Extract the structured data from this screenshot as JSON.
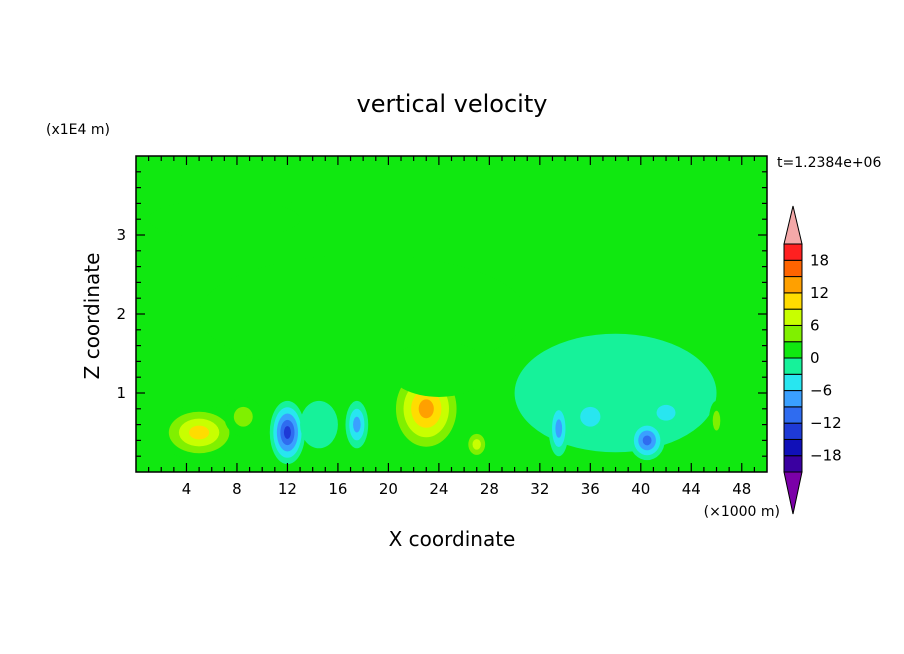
{
  "chart_data": {
    "type": "heatmap",
    "title": "vertical velocity",
    "xlabel": "X coordinate",
    "ylabel": "Z coordinate",
    "x_unit": "(×1000 m)",
    "y_unit": "(x1E4 m)",
    "time_label": "t=1.2384e+06",
    "xlim": [
      0,
      50
    ],
    "ylim": [
      0,
      4
    ],
    "x_ticks": [
      4,
      8,
      12,
      16,
      20,
      24,
      28,
      32,
      36,
      40,
      44,
      48
    ],
    "y_ticks": [
      1,
      2,
      3
    ],
    "background_level": 0,
    "colorbar": {
      "levels": [
        -21,
        -18,
        -15,
        -12,
        -9,
        -6,
        -3,
        0,
        3,
        6,
        9,
        12,
        15,
        18,
        21
      ],
      "tick_labels": [
        -18,
        -12,
        -6,
        0,
        6,
        12,
        18
      ],
      "colors": [
        "#7b00a8",
        "#3a00a0",
        "#1010b8",
        "#1e3ad6",
        "#2f6cf0",
        "#3aa0ff",
        "#28e6f0",
        "#16f29a",
        "#10e810",
        "#80f000",
        "#c8ff00",
        "#ffdc00",
        "#ffa000",
        "#ff6400",
        "#ff2020",
        "#f4a8a8"
      ],
      "extend": "both"
    },
    "features": [
      {
        "x": 5,
        "z": 0.5,
        "value": 11,
        "rx": 3.2,
        "rz": 0.35
      },
      {
        "x": 8.5,
        "z": 0.7,
        "value": 5,
        "rx": 1.5,
        "rz": 0.25
      },
      {
        "x": 12,
        "z": 0.5,
        "value": -14,
        "rx": 1.4,
        "rz": 0.4
      },
      {
        "x": 14.5,
        "z": 0.6,
        "value": -3,
        "rx": 1.5,
        "rz": 0.3
      },
      {
        "x": 17.5,
        "z": 0.6,
        "value": -10,
        "rx": 0.9,
        "rz": 0.3
      },
      {
        "x": 23,
        "z": 0.8,
        "value": 14,
        "rx": 3.0,
        "rz": 0.6
      },
      {
        "x": 27,
        "z": 0.35,
        "value": 9,
        "rx": 1.0,
        "rz": 0.2
      },
      {
        "x": 33.5,
        "z": 0.55,
        "value": -8,
        "rx": 0.8,
        "rz": 0.35
      },
      {
        "x": 36,
        "z": 0.7,
        "value": -6,
        "rx": 1.6,
        "rz": 0.25
      },
      {
        "x": 40.5,
        "z": 0.4,
        "value": -12,
        "rx": 1.4,
        "rz": 0.25
      },
      {
        "x": 42,
        "z": 0.75,
        "value": -7,
        "rx": 1.5,
        "rz": 0.2
      },
      {
        "x": 46,
        "z": 0.65,
        "value": 5,
        "rx": 0.6,
        "rz": 0.25
      },
      {
        "x": 38,
        "z": 1.0,
        "value": -3,
        "rx": 8.0,
        "rz": 0.75
      },
      {
        "x": 18,
        "z": 2.0,
        "value": 2,
        "rx": 13.0,
        "rz": 0.75
      },
      {
        "x": 24,
        "z": 1.3,
        "value": 4,
        "rx": 4.0,
        "rz": 0.35
      },
      {
        "x": 7,
        "z": 3.2,
        "value": 1,
        "rx": 6.0,
        "rz": 0.25
      },
      {
        "x": 14,
        "z": 3.7,
        "value": 1,
        "rx": 3.0,
        "rz": 0.35
      },
      {
        "x": 36,
        "z": 2.95,
        "value": 1,
        "rx": 12.0,
        "rz": 0.12
      }
    ]
  }
}
